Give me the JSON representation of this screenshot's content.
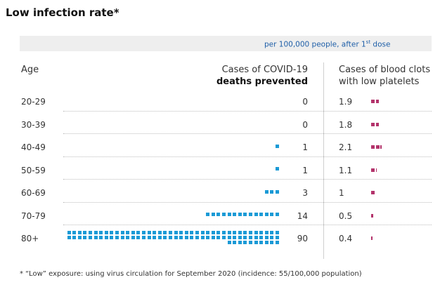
{
  "title": "Low infection rate*",
  "subtitle": {
    "prefix": "per 100,000 people, after 1",
    "superscript": "st",
    "suffix": " dose"
  },
  "columns": {
    "age": "Age",
    "deaths_line1": "Cases of COVID-19",
    "deaths_line2": "deaths prevented",
    "clots_line1": "Cases of blood clots",
    "clots_line2": "with low platelets"
  },
  "footnote": "* “Low” exposure: using virus circulation for September 2020 (incidence: 55/100,000 population)",
  "colors": {
    "deaths": "#1a9ad6",
    "clots": "#b3336b"
  },
  "chart_data": {
    "type": "table",
    "categories": [
      "20-29",
      "30-39",
      "40-49",
      "50-59",
      "60-69",
      "70-79",
      "80+"
    ],
    "series": [
      {
        "name": "Cases of COVID-19 deaths prevented",
        "values": [
          0,
          0,
          1,
          1,
          3,
          14,
          90
        ],
        "labels": [
          "0",
          "0",
          "1",
          "1",
          "3",
          "14",
          "90"
        ]
      },
      {
        "name": "Cases of blood clots with low platelets",
        "values": [
          1.9,
          1.8,
          2.1,
          1.1,
          1,
          0.5,
          0.4
        ],
        "labels": [
          "1.9",
          "1.8",
          "2.1",
          "1.1",
          "1",
          "0.5",
          "0.4"
        ]
      }
    ]
  }
}
